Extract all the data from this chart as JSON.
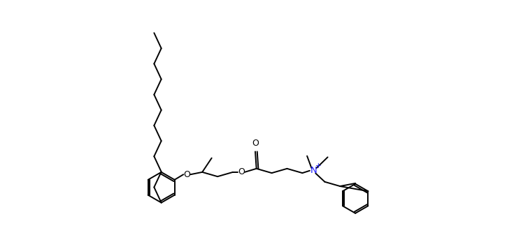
{
  "bg_color": "#ffffff",
  "lc": "#000000",
  "Nc": "#1a1aff",
  "lw": 1.4,
  "fs": 9.0,
  "xlim": [
    0,
    14.7
  ],
  "ylim": [
    -2.2,
    5.5
  ]
}
